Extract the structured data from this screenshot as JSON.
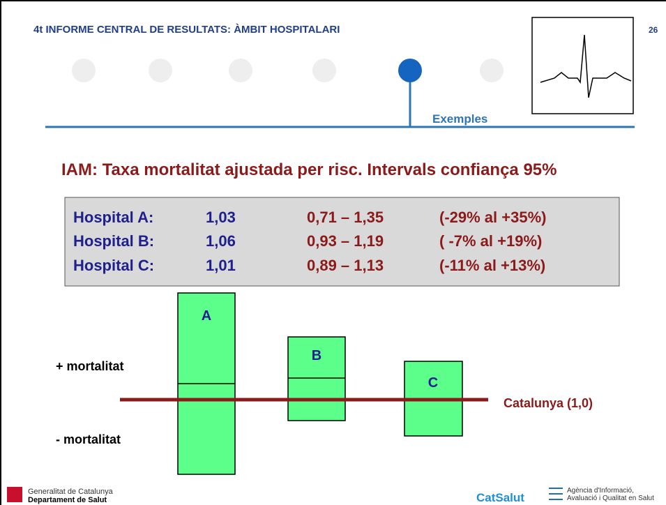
{
  "header": {
    "title": "4t INFORME CENTRAL DE RESULTATS: ÀMBIT HOSPITALARI",
    "page_number": "26"
  },
  "nav": {
    "label": "Exemples"
  },
  "heading": "IAM: Taxa mortalitat ajustada per risc. Intervals confiança 95%",
  "table": {
    "rows": [
      [
        "Hospital A:",
        "1,03",
        "0,71 – 1,35",
        "(-29% al +35%)"
      ],
      [
        "Hospital B:",
        "1,06",
        "0,93 – 1,19",
        "( -7% al +19%)"
      ],
      [
        "Hospital C:",
        "1,01",
        "0,89 – 1,13",
        "(-11% al +13%)"
      ]
    ]
  },
  "diagram": {
    "boxes": [
      "A",
      "B",
      "C"
    ],
    "upper_label": "+ mortalitat",
    "lower_label": "- mortalitat",
    "reference_label": "Catalunya (1,0)"
  },
  "footer": {
    "left": [
      "Generalitat de Catalunya",
      "Departament de Salut"
    ],
    "center": "CatSalut",
    "right": [
      "Agència d'Informació,",
      "Avaluació i Qualitat en Salut"
    ]
  }
}
